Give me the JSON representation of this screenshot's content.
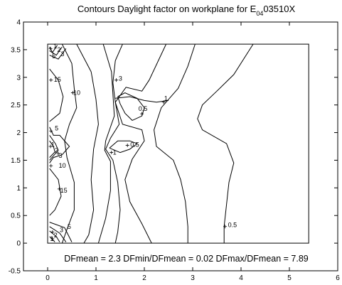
{
  "chart_data": {
    "type": "contour",
    "title": {
      "prefix": "Contours Daylight factor on workplane  for E",
      "subscript": "04",
      "suffix": "03510X"
    },
    "xlabel": "",
    "ylabel": "",
    "xlim": [
      -0.5,
      6
    ],
    "ylim": [
      -0.5,
      4
    ],
    "xticks": [
      0,
      1,
      2,
      3,
      4,
      5,
      6
    ],
    "yticks": [
      -0.5,
      0,
      0.5,
      1,
      1.5,
      2,
      2.5,
      3,
      3.5,
      4
    ],
    "ytick_labels": [
      "-0.5",
      "0",
      "0.5",
      "1",
      "1.5",
      "2",
      "2.5",
      "3",
      "3.5",
      "4"
    ],
    "room_outline": {
      "x": [
        0,
        5.4
      ],
      "y": [
        0,
        3.6
      ]
    },
    "stats_text": "DFmean =  2.3   DFmin/DFmean = 0.02   DFmax/DFmean =  7.89",
    "contours": [
      {
        "level": 0.5,
        "points": [
          [
            3.05,
            3.6
          ],
          [
            2.9,
            3.2
          ],
          [
            2.7,
            2.8
          ],
          [
            2.35,
            2.45
          ],
          [
            2.2,
            2.05
          ],
          [
            2.25,
            1.75
          ],
          [
            2.6,
            1.5
          ],
          [
            2.75,
            1.15
          ],
          [
            2.85,
            0.75
          ],
          [
            2.9,
            0.3
          ],
          [
            2.9,
            0
          ]
        ]
      },
      {
        "level": 0.5,
        "points": [
          [
            4.25,
            3.6
          ],
          [
            3.85,
            3.05
          ],
          [
            3.5,
            2.75
          ],
          [
            3.2,
            2.5
          ],
          [
            3.1,
            2.25
          ],
          [
            3.2,
            2.05
          ],
          [
            3.7,
            1.8
          ],
          [
            3.85,
            1.45
          ],
          [
            3.75,
            1.1
          ],
          [
            3.7,
            0.7
          ],
          [
            3.65,
            0.3
          ],
          [
            3.65,
            0
          ]
        ]
      },
      {
        "level": 0.5,
        "points": [
          [
            1.45,
            2.65
          ],
          [
            1.6,
            2.72
          ],
          [
            1.85,
            2.62
          ],
          [
            2.0,
            2.45
          ],
          [
            1.95,
            2.3
          ],
          [
            1.75,
            2.22
          ],
          [
            1.6,
            2.35
          ],
          [
            1.5,
            2.52
          ],
          [
            1.45,
            2.65
          ]
        ]
      },
      {
        "level": 0.5,
        "points": [
          [
            1.28,
            1.72
          ],
          [
            1.45,
            1.85
          ],
          [
            1.7,
            1.85
          ],
          [
            1.85,
            1.8
          ],
          [
            1.7,
            1.7
          ],
          [
            1.5,
            1.64
          ],
          [
            1.28,
            1.72
          ]
        ]
      },
      {
        "level": 1,
        "points": [
          [
            2.45,
            3.6
          ],
          [
            2.1,
            2.95
          ],
          [
            1.95,
            2.75
          ],
          [
            1.62,
            2.82
          ],
          [
            1.4,
            2.55
          ],
          [
            1.55,
            2.15
          ],
          [
            1.95,
            2.05
          ],
          [
            2.0,
            1.85
          ],
          [
            1.75,
            1.52
          ],
          [
            1.6,
            1.15
          ],
          [
            1.7,
            0.75
          ],
          [
            1.95,
            0.35
          ],
          [
            2.15,
            0
          ]
        ]
      },
      {
        "level": 1,
        "points": [
          [
            1.4,
            2.62
          ],
          [
            1.7,
            2.65
          ],
          [
            2.0,
            2.58
          ],
          [
            2.25,
            2.55
          ],
          [
            2.5,
            2.58
          ]
        ]
      },
      {
        "level": 2,
        "points": [
          [
            1.55,
            3.6
          ],
          [
            1.4,
            3.3
          ],
          [
            1.35,
            2.9
          ],
          [
            1.4,
            2.55
          ],
          [
            1.48,
            2.15
          ],
          [
            1.3,
            1.9
          ],
          [
            1.2,
            1.7
          ],
          [
            1.35,
            1.5
          ],
          [
            1.45,
            1.1
          ],
          [
            1.5,
            0.6
          ],
          [
            1.45,
            0.2
          ],
          [
            1.4,
            0
          ]
        ]
      },
      {
        "level": 3,
        "points": [
          [
            1.15,
            3.6
          ],
          [
            1.32,
            3.1
          ],
          [
            1.35,
            2.7
          ],
          [
            1.38,
            2.3
          ],
          [
            1.2,
            1.85
          ],
          [
            1.18,
            1.68
          ],
          [
            1.3,
            1.48
          ],
          [
            1.3,
            0.95
          ],
          [
            1.2,
            0.45
          ],
          [
            1.05,
            0
          ]
        ]
      },
      {
        "level": 5,
        "points": [
          [
            0.6,
            3.6
          ],
          [
            0.9,
            3.1
          ],
          [
            1.0,
            2.6
          ],
          [
            1.05,
            2.15
          ],
          [
            0.95,
            1.7
          ],
          [
            0.9,
            1.15
          ],
          [
            0.95,
            0.6
          ],
          [
            0.85,
            0.15
          ],
          [
            0.75,
            0
          ]
        ]
      },
      {
        "level": 10,
        "points": [
          [
            0.3,
            3.6
          ],
          [
            0.5,
            3.25
          ],
          [
            0.55,
            2.8
          ],
          [
            0.6,
            2.45
          ],
          [
            0.45,
            2.15
          ],
          [
            0.35,
            1.85
          ],
          [
            0.4,
            1.55
          ],
          [
            0.55,
            1.1
          ],
          [
            0.55,
            0.6
          ],
          [
            0.4,
            0.25
          ],
          [
            0.3,
            0
          ]
        ]
      },
      {
        "level": 15,
        "points": [
          [
            0.04,
            3.15
          ],
          [
            0.22,
            2.95
          ],
          [
            0.32,
            2.65
          ],
          [
            0.25,
            2.35
          ],
          [
            0.04,
            2.2
          ]
        ]
      },
      {
        "level": 15,
        "points": [
          [
            0.04,
            1.35
          ],
          [
            0.22,
            1.15
          ],
          [
            0.28,
            0.85
          ],
          [
            0.15,
            0.6
          ],
          [
            0.04,
            0.5
          ]
        ]
      },
      {
        "level": 1,
        "points": [
          [
            0.04,
            3.55
          ],
          [
            0.1,
            3.45
          ],
          [
            0.2,
            3.58
          ]
        ]
      },
      {
        "level": 2,
        "points": [
          [
            0.04,
            3.48
          ],
          [
            0.18,
            3.4
          ],
          [
            0.3,
            3.55
          ]
        ]
      },
      {
        "level": 3,
        "points": [
          [
            0.04,
            3.4
          ],
          [
            0.22,
            3.33
          ],
          [
            0.38,
            3.52
          ]
        ]
      },
      {
        "level": 5,
        "points": [
          [
            0.04,
            2.1
          ],
          [
            0.12,
            1.95
          ],
          [
            0.25,
            1.95
          ],
          [
            0.45,
            1.75
          ],
          [
            0.3,
            1.6
          ],
          [
            0.12,
            1.55
          ],
          [
            0.04,
            1.45
          ]
        ]
      },
      {
        "level": 2,
        "points": [
          [
            0.04,
            1.85
          ],
          [
            0.12,
            1.75
          ],
          [
            0.15,
            1.65
          ],
          [
            0.04,
            1.55
          ]
        ]
      },
      {
        "level": 3,
        "points": [
          [
            0.04,
            1.95
          ],
          [
            0.16,
            1.8
          ],
          [
            0.22,
            1.68
          ],
          [
            0.04,
            1.5
          ]
        ]
      },
      {
        "level": 1,
        "points": [
          [
            0.04,
            0.12
          ],
          [
            0.12,
            0.05
          ],
          [
            0.15,
            0.02
          ]
        ]
      },
      {
        "level": 2,
        "points": [
          [
            0.04,
            0.22
          ],
          [
            0.18,
            0.12
          ],
          [
            0.25,
            0.02
          ]
        ]
      },
      {
        "level": 3,
        "points": [
          [
            0.04,
            0.3
          ],
          [
            0.25,
            0.18
          ],
          [
            0.38,
            0.02
          ]
        ]
      },
      {
        "level": 5,
        "points": [
          [
            0.04,
            0.38
          ],
          [
            0.35,
            0.28
          ],
          [
            0.5,
            0.02
          ]
        ]
      }
    ],
    "contour_labels": [
      {
        "text": "1",
        "x": 0.09,
        "y": 3.56
      },
      {
        "text": "2",
        "x": 0.17,
        "y": 3.5
      },
      {
        "text": "3",
        "x": 0.24,
        "y": 3.42
      },
      {
        "text": "5",
        "x": 0.06,
        "y": 3.38
      },
      {
        "text": "15",
        "x": 0.1,
        "y": 2.96
      },
      {
        "text": "10",
        "x": 0.5,
        "y": 2.72
      },
      {
        "text": "3",
        "x": 1.44,
        "y": 2.98
      },
      {
        "text": "1",
        "x": 2.38,
        "y": 2.62
      },
      {
        "text": "0.5",
        "x": 1.85,
        "y": 2.43
      },
      {
        "text": "5",
        "x": 0.12,
        "y": 2.08
      },
      {
        "text": "1",
        "x": 0.04,
        "y": 1.78
      },
      {
        "text": "2",
        "x": 0.12,
        "y": 1.68
      },
      {
        "text": "3",
        "x": 0.2,
        "y": 1.58
      },
      {
        "text": "0.5",
        "x": 1.68,
        "y": 1.78
      },
      {
        "text": "1",
        "x": 1.32,
        "y": 1.64
      },
      {
        "text": "10",
        "x": 0.2,
        "y": 1.4
      },
      {
        "text": "15",
        "x": 0.23,
        "y": 0.95
      },
      {
        "text": "5",
        "x": 0.38,
        "y": 0.3
      },
      {
        "text": "3",
        "x": 0.22,
        "y": 0.24
      },
      {
        "text": "2",
        "x": 0.1,
        "y": 0.14
      },
      {
        "text": "1",
        "x": 0.02,
        "y": 0.08
      },
      {
        "text": "0.5",
        "x": 3.7,
        "y": 0.33
      }
    ],
    "marker_points": [
      [
        0.06,
        3.52
      ],
      [
        0.07,
        2.95
      ],
      [
        0.07,
        2.03
      ],
      [
        0.06,
        1.75
      ],
      [
        0.07,
        1.4
      ],
      [
        0.24,
        0.98
      ],
      [
        0.1,
        0.2
      ],
      [
        0.1,
        0.08
      ],
      [
        0.52,
        2.72
      ],
      [
        1.42,
        2.95
      ],
      [
        1.95,
        2.34
      ],
      [
        2.4,
        2.55
      ],
      [
        1.65,
        1.77
      ],
      [
        1.32,
        1.64
      ],
      [
        3.67,
        0.3
      ],
      [
        0.22,
        1.62
      ]
    ]
  }
}
